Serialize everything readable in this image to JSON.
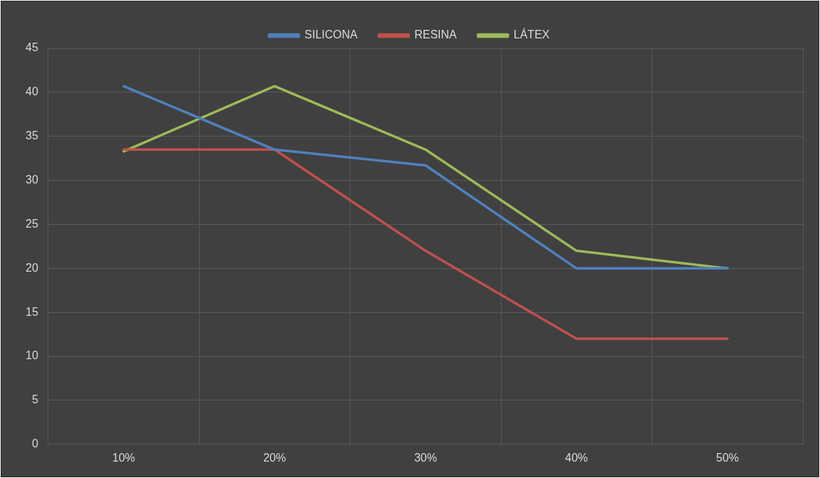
{
  "chart_data": {
    "type": "line",
    "categories": [
      "10%",
      "20%",
      "30%",
      "40%",
      "50%"
    ],
    "series": [
      {
        "name": "SILICONA",
        "color": "#4f81bd",
        "values": [
          40.7,
          33.5,
          31.7,
          20,
          20
        ]
      },
      {
        "name": "RESINA",
        "color": "#c0504d",
        "values": [
          33.5,
          33.5,
          22,
          12,
          12
        ]
      },
      {
        "name": "LÁTEX",
        "color": "#9bbb59",
        "values": [
          33.3,
          40.7,
          33.5,
          22,
          20
        ]
      }
    ],
    "ylim": [
      0,
      45
    ],
    "yticks": [
      0,
      5,
      10,
      15,
      20,
      25,
      30,
      35,
      40,
      45
    ],
    "grid": true,
    "legend": "top",
    "marker": "none",
    "line_style": "solid"
  }
}
